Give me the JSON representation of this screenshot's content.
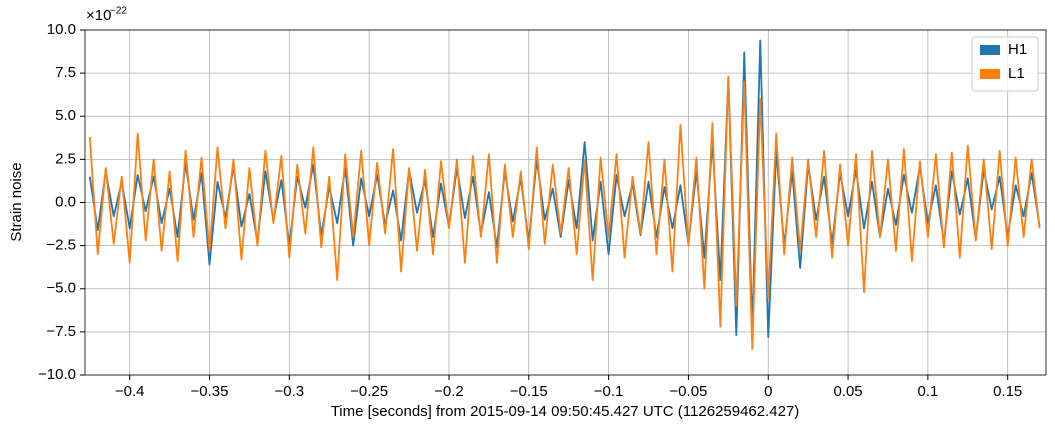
{
  "chart_data": {
    "type": "line",
    "xlabel": "Time [seconds] from 2015-09-14 09:50:45.427 UTC (1126259462.427)",
    "ylabel": "Strain noise",
    "y_scale_base": "×10",
    "y_scale_exponent": "−22",
    "xlim": [
      -0.428,
      0.174
    ],
    "ylim": [
      -10,
      10
    ],
    "xticks": [
      {
        "value": -0.4,
        "label": "−0.4"
      },
      {
        "value": -0.35,
        "label": "−0.35"
      },
      {
        "value": -0.3,
        "label": "−0.3"
      },
      {
        "value": -0.25,
        "label": "−0.25"
      },
      {
        "value": -0.2,
        "label": "−0.2"
      },
      {
        "value": -0.15,
        "label": "−0.15"
      },
      {
        "value": -0.1,
        "label": "−0.1"
      },
      {
        "value": -0.05,
        "label": "−0.05"
      },
      0,
      0.05,
      0.1,
      0.15
    ],
    "yticks": [
      {
        "value": -10,
        "label": "−10.0"
      },
      {
        "value": -7.5,
        "label": "−7.5"
      },
      {
        "value": -5,
        "label": "−5.0"
      },
      {
        "value": -2.5,
        "label": "−2.5"
      },
      {
        "value": 0,
        "label": "0.0"
      },
      2.5,
      {
        "value": 5,
        "label": "5.0"
      },
      7.5,
      {
        "value": 10,
        "label": "10.0"
      }
    ],
    "grid": true,
    "legend": "upper right",
    "x": [
      -0.425,
      -0.42,
      -0.415,
      -0.41,
      -0.405,
      -0.4,
      -0.395,
      -0.39,
      -0.385,
      -0.38,
      -0.375,
      -0.37,
      -0.365,
      -0.36,
      -0.355,
      -0.35,
      -0.345,
      -0.34,
      -0.335,
      -0.33,
      -0.325,
      -0.32,
      -0.315,
      -0.31,
      -0.305,
      -0.3,
      -0.295,
      -0.29,
      -0.285,
      -0.28,
      -0.275,
      -0.27,
      -0.265,
      -0.26,
      -0.255,
      -0.25,
      -0.245,
      -0.24,
      -0.235,
      -0.23,
      -0.225,
      -0.22,
      -0.215,
      -0.21,
      -0.205,
      -0.2,
      -0.195,
      -0.19,
      -0.185,
      -0.18,
      -0.175,
      -0.17,
      -0.165,
      -0.16,
      -0.155,
      -0.15,
      -0.145,
      -0.14,
      -0.135,
      -0.13,
      -0.125,
      -0.12,
      -0.115,
      -0.11,
      -0.105,
      -0.1,
      -0.095,
      -0.09,
      -0.085,
      -0.08,
      -0.075,
      -0.07,
      -0.065,
      -0.06,
      -0.055,
      -0.05,
      -0.045,
      -0.04,
      -0.035,
      -0.03,
      -0.025,
      -0.02,
      -0.015,
      -0.01,
      -0.005,
      0,
      0.005,
      0.01,
      0.015,
      0.02,
      0.025,
      0.03,
      0.035,
      0.04,
      0.045,
      0.05,
      0.055,
      0.06,
      0.065,
      0.07,
      0.075,
      0.08,
      0.085,
      0.09,
      0.095,
      0.1,
      0.105,
      0.11,
      0.115,
      0.12,
      0.125,
      0.13,
      0.135,
      0.14,
      0.145,
      0.15,
      0.155,
      0.16,
      0.165,
      0.17
    ],
    "series": [
      {
        "name": "H1",
        "color": "#1f77b4",
        "values": [
          1.5,
          -1.6,
          1.8,
          -0.8,
          1.2,
          -1.5,
          1.6,
          -0.5,
          1.5,
          -1.2,
          0.8,
          -2.0,
          2.3,
          -1.0,
          1.7,
          -3.6,
          1.2,
          -0.9,
          2.1,
          -1.4,
          0.5,
          -2.3,
          1.8,
          -1.0,
          1.3,
          -2.5,
          1.5,
          -0.3,
          2.2,
          -1.9,
          0.9,
          -1.2,
          2.0,
          -2.5,
          1.4,
          -0.8,
          1.6,
          -1.3,
          0.7,
          -2.2,
          1.9,
          -0.6,
          1.3,
          -2.0,
          1.1,
          -1.4,
          2.0,
          -0.9,
          1.5,
          -1.8,
          0.6,
          -2.6,
          1.8,
          -1.1,
          1.4,
          -2.3,
          2.5,
          -1.0,
          0.8,
          -2.0,
          1.3,
          -1.5,
          3.5,
          -2.2,
          1.2,
          -3.0,
          1.6,
          -0.8,
          1.1,
          -1.9,
          1.2,
          -2.0,
          0.9,
          -1.5,
          1.0,
          -2.4,
          1.8,
          -3.2,
          3.5,
          -4.5,
          7.2,
          -7.7,
          8.7,
          -7.4,
          9.4,
          -7.8,
          3.0,
          -2.5,
          1.8,
          -3.8,
          2.2,
          -1.0,
          1.5,
          -2.4,
          1.7,
          -0.8,
          1.9,
          -1.5,
          1.2,
          -2.0,
          0.8,
          -1.3,
          1.6,
          -0.6,
          2.1,
          -1.2,
          1.0,
          -2.3,
          1.8,
          -0.7,
          1.4,
          -2.1,
          1.9,
          -0.4,
          1.5,
          -2.0,
          1.0,
          -0.8,
          1.7,
          -1.4
        ]
      },
      {
        "name": "L1",
        "color": "#ff7f0e",
        "values": [
          3.8,
          -3.0,
          2.0,
          -2.4,
          1.5,
          -3.5,
          4.0,
          -2.2,
          2.5,
          -2.8,
          1.8,
          -3.4,
          3.0,
          -2.0,
          2.6,
          -2.8,
          3.2,
          -1.5,
          2.5,
          -3.3,
          2.0,
          -2.5,
          3.0,
          -1.2,
          2.7,
          -3.2,
          2.2,
          -1.8,
          3.2,
          -2.6,
          1.5,
          -4.5,
          2.8,
          -2.0,
          3.0,
          -2.5,
          2.3,
          -1.8,
          3.1,
          -4.0,
          2.0,
          -2.8,
          1.9,
          -3.0,
          2.4,
          -1.5,
          2.5,
          -3.5,
          2.7,
          -2.0,
          2.8,
          -3.5,
          2.2,
          -2.0,
          1.8,
          -2.7,
          3.2,
          -2.4,
          2.2,
          -1.8,
          2.0,
          -3.0,
          2.5,
          -4.5,
          2.6,
          -2.0,
          2.8,
          -3.2,
          1.5,
          -1.8,
          3.5,
          -3.0,
          2.5,
          -4.0,
          4.5,
          -2.5,
          2.6,
          -5.0,
          4.6,
          -7.2,
          7.3,
          -6.0,
          7.0,
          -8.5,
          6.0,
          -5.5,
          4.0,
          -3.0,
          2.6,
          -2.8,
          2.5,
          -2.0,
          3.0,
          -3.2,
          2.2,
          -2.5,
          2.8,
          -5.2,
          3.0,
          -2.0,
          2.5,
          -2.8,
          3.1,
          -3.4,
          2.4,
          -2.0,
          2.8,
          -2.6,
          2.9,
          -3.2,
          3.3,
          -2.2,
          2.5,
          -2.7,
          3.0,
          -2.5,
          2.6,
          -2.0,
          2.5,
          -1.5
        ]
      }
    ]
  }
}
